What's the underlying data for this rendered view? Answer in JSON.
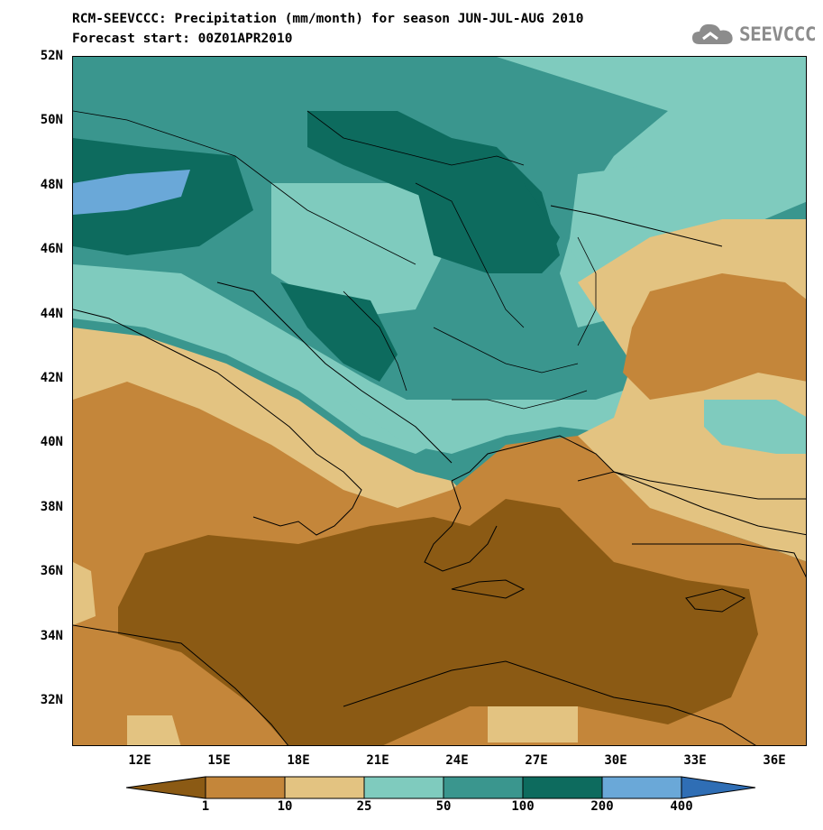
{
  "title_line1": "RCM-SEEVCCC: Precipitation (mm/month) for season JUN-JUL-AUG 2010",
  "title_line2": "Forecast start: 00Z01APR2010",
  "logo_text": "SEEVCCC",
  "logo_icon": "cloud-icon",
  "lat_labels": [
    "52N",
    "50N",
    "48N",
    "46N",
    "44N",
    "42N",
    "40N",
    "38N",
    "36N",
    "34N",
    "32N"
  ],
  "lon_labels": [
    "12E",
    "15E",
    "18E",
    "21E",
    "24E",
    "27E",
    "30E",
    "33E",
    "36E"
  ],
  "colorbar": {
    "labels": [
      "1",
      "10",
      "25",
      "50",
      "100",
      "200",
      "400"
    ],
    "colors": [
      "#8b5a14",
      "#c4863a",
      "#e3c381",
      "#7fcbbe",
      "#3a968e",
      "#0d6b5e",
      "#6aa8d8",
      "#2f6eb5"
    ]
  }
}
